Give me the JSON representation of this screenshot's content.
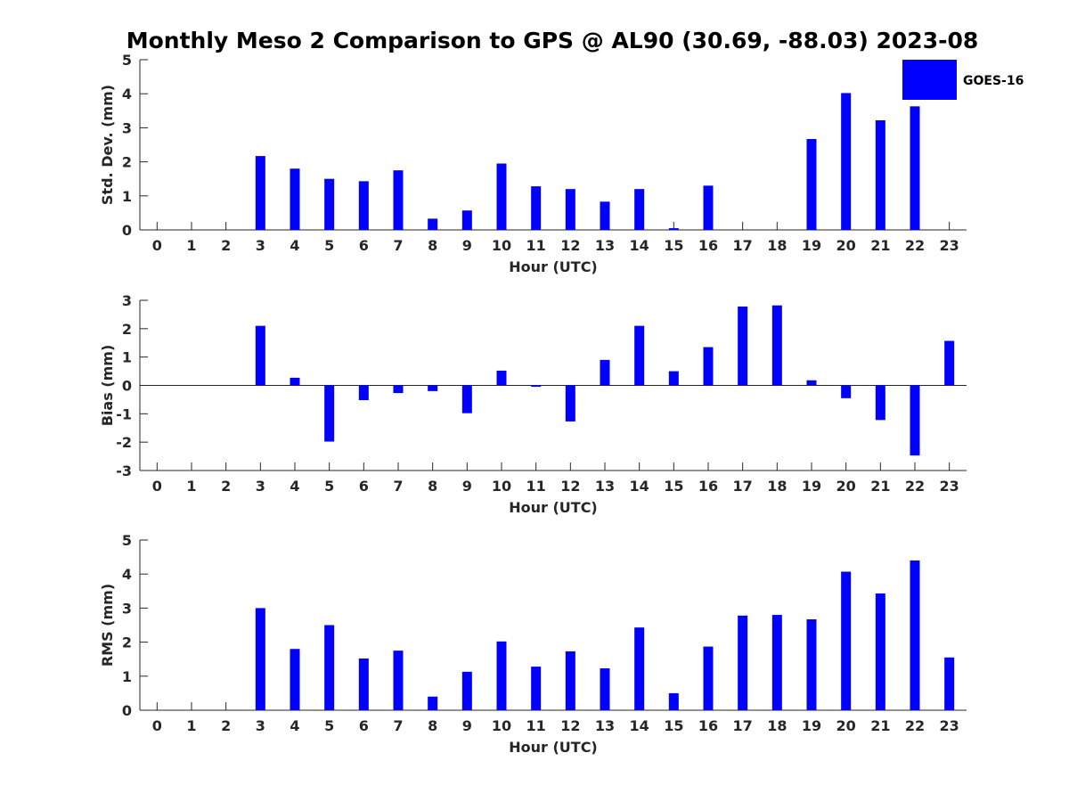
{
  "title": "Monthly Meso 2 Comparison to GPS @ AL90 (30.69, -88.03) 2023-08",
  "legend": {
    "label": "GOES-16",
    "color": "#0000ff",
    "placement": "top-right"
  },
  "chart_data": [
    {
      "type": "bar",
      "name": "std-dev",
      "xlabel": "Hour (UTC)",
      "ylabel": "Std. Dev. (mm)",
      "categories": [
        "0",
        "1",
        "2",
        "3",
        "4",
        "5",
        "6",
        "7",
        "8",
        "9",
        "10",
        "11",
        "12",
        "13",
        "14",
        "15",
        "16",
        "17",
        "18",
        "19",
        "20",
        "21",
        "22",
        "23"
      ],
      "values": [
        null,
        null,
        null,
        2.17,
        1.8,
        1.5,
        1.43,
        1.75,
        0.33,
        0.57,
        1.95,
        1.28,
        1.2,
        0.83,
        1.2,
        0.05,
        1.3,
        null,
        null,
        2.67,
        4.02,
        3.22,
        3.63,
        null
      ],
      "ylim": [
        0,
        5
      ],
      "yticks": [
        0,
        1,
        2,
        3,
        4,
        5
      ],
      "color": "#0000ff"
    },
    {
      "type": "bar",
      "name": "bias",
      "xlabel": "Hour (UTC)",
      "ylabel": "Bias (mm)",
      "categories": [
        "0",
        "1",
        "2",
        "3",
        "4",
        "5",
        "6",
        "7",
        "8",
        "9",
        "10",
        "11",
        "12",
        "13",
        "14",
        "15",
        "16",
        "17",
        "18",
        "19",
        "20",
        "21",
        "22",
        "23"
      ],
      "values": [
        null,
        null,
        null,
        2.1,
        0.27,
        -1.98,
        -0.52,
        -0.27,
        -0.2,
        -0.98,
        0.52,
        -0.05,
        -1.27,
        0.9,
        2.1,
        0.5,
        1.35,
        2.78,
        2.82,
        0.18,
        -0.45,
        -1.22,
        -2.47,
        1.57
      ],
      "ylim": [
        -3,
        3
      ],
      "yticks": [
        -3,
        -2,
        -1,
        0,
        1,
        2,
        3
      ],
      "color": "#0000ff"
    },
    {
      "type": "bar",
      "name": "rms",
      "xlabel": "Hour (UTC)",
      "ylabel": "RMS (mm)",
      "categories": [
        "0",
        "1",
        "2",
        "3",
        "4",
        "5",
        "6",
        "7",
        "8",
        "9",
        "10",
        "11",
        "12",
        "13",
        "14",
        "15",
        "16",
        "17",
        "18",
        "19",
        "20",
        "21",
        "22",
        "23"
      ],
      "values": [
        null,
        null,
        null,
        3.0,
        1.8,
        2.5,
        1.52,
        1.75,
        0.4,
        1.13,
        2.02,
        1.28,
        1.73,
        1.23,
        2.43,
        0.5,
        1.87,
        2.78,
        2.8,
        2.67,
        4.07,
        3.43,
        4.4,
        1.55
      ],
      "ylim": [
        0,
        5
      ],
      "yticks": [
        0,
        1,
        2,
        3,
        4,
        5
      ],
      "color": "#0000ff"
    }
  ]
}
